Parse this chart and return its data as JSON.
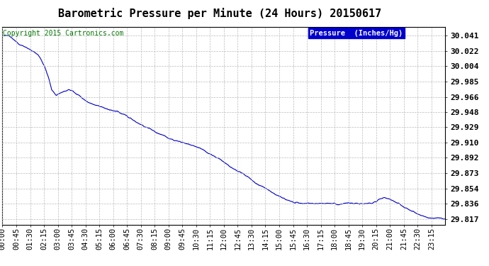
{
  "title": "Barometric Pressure per Minute (24 Hours) 20150617",
  "copyright_text": "Copyright 2015 Cartronics.com",
  "legend_text": "Pressure  (Inches/Hg)",
  "legend_bg": "#0000cc",
  "legend_fg": "#ffffff",
  "line_color": "#0000cc",
  "background_color": "#ffffff",
  "grid_color": "#bbbbbb",
  "yticks": [
    30.041,
    30.022,
    30.004,
    29.985,
    29.966,
    29.948,
    29.929,
    29.91,
    29.892,
    29.873,
    29.854,
    29.836,
    29.817
  ],
  "ymin": 29.81,
  "ymax": 30.052,
  "xtick_labels": [
    "00:00",
    "00:45",
    "01:30",
    "02:15",
    "03:00",
    "03:45",
    "04:30",
    "05:15",
    "06:00",
    "06:45",
    "07:30",
    "08:15",
    "09:00",
    "09:45",
    "10:30",
    "11:15",
    "12:00",
    "12:45",
    "13:30",
    "14:15",
    "15:00",
    "15:45",
    "16:30",
    "17:15",
    "18:00",
    "18:45",
    "19:30",
    "20:15",
    "21:00",
    "21:45",
    "22:30",
    "23:15"
  ],
  "title_fontsize": 11,
  "tick_fontsize": 7.5,
  "copyright_fontsize": 7,
  "copyright_color": "#007700"
}
